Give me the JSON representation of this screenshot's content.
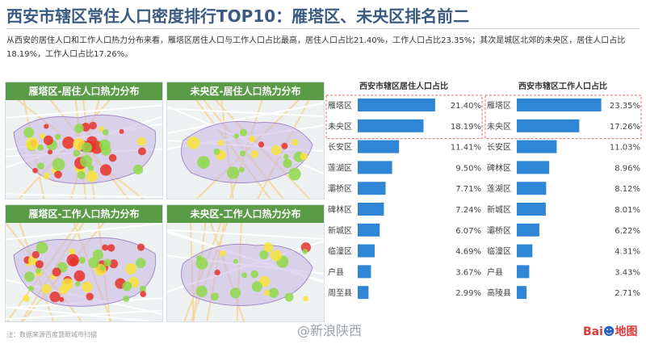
{
  "header": {
    "title": "西安市辖区常住人口密度排行TOP10：雁塔区、未央区排名前二",
    "description": "从西安的居住人口和工作人口热力分布来看，雁塔区居住人口与工作人口占比最高，居住人口占比21.40%，工作人口占比23.35%；其次是城区北郊的未央区，居住人口占比18.19%，工作人口占比17.26%。"
  },
  "maps": [
    {
      "title": "雁塔区-居住人口热力分布",
      "variant": "dense"
    },
    {
      "title": "未央区-居住人口热力分布",
      "variant": "light"
    },
    {
      "title": "雁塔区-工作人口热力分布",
      "variant": "dense"
    },
    {
      "title": "未央区-工作人口热力分布",
      "variant": "light"
    }
  ],
  "map_colors": {
    "header": "#5a9b48",
    "hot": "#e8332a",
    "warm": "#f7e33a",
    "mild": "#8fd94a",
    "cool": "#c9b6e4",
    "base": "#eef1f2"
  },
  "chart_data": [
    {
      "type": "bar",
      "orientation": "horizontal",
      "title": "西安市辖区居住人口占比",
      "categories": [
        "雁塔区",
        "未央区",
        "长安区",
        "莲湖区",
        "灞桥区",
        "碑林区",
        "新城区",
        "临潼区",
        "户县",
        "周至县"
      ],
      "values": [
        21.4,
        18.19,
        11.41,
        9.5,
        7.71,
        7.24,
        6.07,
        4.69,
        3.67,
        2.99
      ],
      "labels": [
        "21.40%",
        "18.19%",
        "11.41%",
        "9.50%",
        "7.71%",
        "7.24%",
        "6.07%",
        "4.69%",
        "3.67%",
        "2.99%"
      ],
      "xlim": [
        0,
        25
      ],
      "highlight_top": 2,
      "bar_color": "#2f86d6",
      "highlight_color": "#e46a6a"
    },
    {
      "type": "bar",
      "orientation": "horizontal",
      "title": "西安市辖区工作人口占比",
      "categories": [
        "雁塔区",
        "未央区",
        "长安区",
        "碑林区",
        "莲湖区",
        "新城区",
        "灞桥区",
        "临潼区",
        "户县",
        "高陵县"
      ],
      "values": [
        23.35,
        17.26,
        11.03,
        8.96,
        8.12,
        8.01,
        6.22,
        4.31,
        3.43,
        2.71
      ],
      "labels": [
        "23.35%",
        "17.26%",
        "11.03%",
        "8.96%",
        "8.12%",
        "8.01%",
        "6.22%",
        "4.31%",
        "3.43%",
        "2.71%"
      ],
      "xlim": [
        0,
        25
      ],
      "highlight_top": 2,
      "bar_color": "#2f86d6",
      "highlight_color": "#e46a6a"
    }
  ],
  "footer": {
    "note": "注：数据来源百度慧眼城市扫描",
    "watermark": "@新浪陕西",
    "logo": {
      "part1": "Bai",
      "part2": "☻",
      "part3": "地图"
    }
  }
}
